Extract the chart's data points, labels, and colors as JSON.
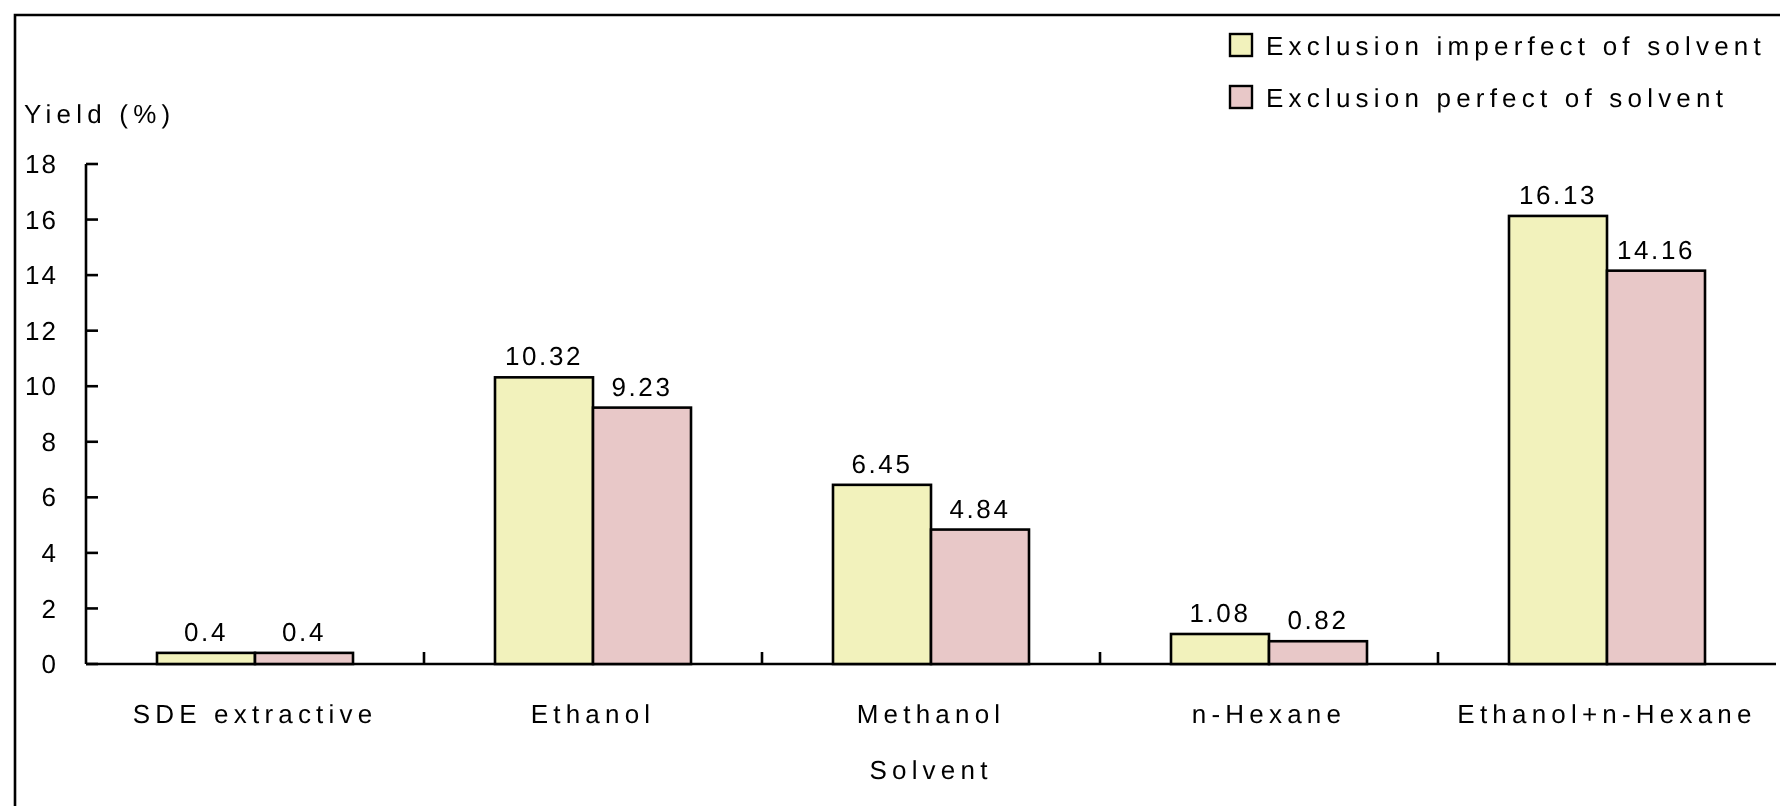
{
  "chart_data": {
    "type": "bar",
    "xlabel": "Solvent",
    "ylabel": "Yield (%)",
    "categories": [
      "SDE extractive",
      "Ethanol",
      "Methanol",
      "n-Hexane",
      "Ethanol+n-Hexane"
    ],
    "series": [
      {
        "name": "Exclusion imperfect of solvent",
        "color": "#f2f2bc",
        "values": [
          0.4,
          10.32,
          6.45,
          1.08,
          16.13
        ]
      },
      {
        "name": "Exclusion perfect of solvent",
        "color": "#e8c8c8",
        "values": [
          0.4,
          9.23,
          4.84,
          0.82,
          14.16
        ]
      }
    ],
    "ylim": [
      0,
      18
    ],
    "yticks": [
      0,
      2,
      4,
      6,
      8,
      10,
      12,
      14,
      16,
      18
    ],
    "data_labels": true,
    "legend": "top right"
  }
}
